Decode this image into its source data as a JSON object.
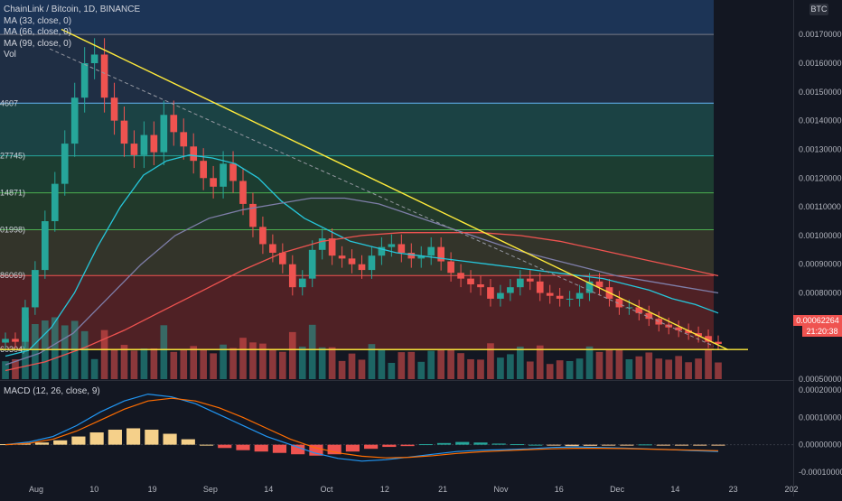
{
  "legend": {
    "symbol": "ChainLink / Bitcoin, 1D, BINANCE",
    "ma1": "MA (33, close, 0)",
    "ma2": "MA (66, close, 0)",
    "ma3": "MA (99, close, 0)",
    "vol": "Vol",
    "macd": "MACD (12, 26, close, 9)"
  },
  "currency_badge": "BTC",
  "last_price": "0.00062264",
  "countdown": "21:20:38",
  "fib_labels": [
    "4607",
    "27745)",
    "14871)",
    "01998)",
    "86069)",
    "60304)"
  ],
  "colors": {
    "background": "#131722",
    "up": "#26a69a",
    "down": "#ef5350",
    "ma33": "#26c6da",
    "ma66": "#7e7ea8",
    "ma99": "#ef5350",
    "trendline": "#ffeb3b"
  },
  "chart_data": [
    {
      "type": "candlestick",
      "title": "ChainLink / Bitcoin, 1D, BINANCE",
      "x_ticks": [
        "Aug",
        "10",
        "19",
        "Sep",
        "14",
        "Oct",
        "12",
        "21",
        "Nov",
        "16",
        "Dec",
        "14",
        "23",
        "202"
      ],
      "y_ticks": [
        "0.00170000",
        "0.00160000",
        "0.00150000",
        "0.00140000",
        "0.00130000",
        "0.00120000",
        "0.00110000",
        "0.00100000",
        "0.00090000",
        "0.00080000",
        "0.00070000",
        "0.00050000"
      ],
      "ylim": [
        0.0005,
        0.00182
      ],
      "fib_levels": [
        0.0017,
        0.00146074,
        0.00127745,
        0.00114871,
        0.00101998,
        0.00086069,
        0.00060304
      ],
      "series": [
        {
          "name": "Price",
          "values": [
            0.00064,
            0.00063,
            0.00075,
            0.00088,
            0.00105,
            0.00118,
            0.00132,
            0.00148,
            0.0016,
            0.00163,
            0.00148,
            0.0014,
            0.00132,
            0.00128,
            0.00135,
            0.00129,
            0.00142,
            0.00136,
            0.00131,
            0.00126,
            0.0012,
            0.00117,
            0.00125,
            0.00119,
            0.00111,
            0.00103,
            0.00097,
            0.00094,
            0.0009,
            0.00082,
            0.00085,
            0.00095,
            0.00099,
            0.00093,
            0.00092,
            0.0009,
            0.00088,
            0.00093,
            0.00096,
            0.00097,
            0.00094,
            0.00092,
            0.00093,
            0.00096,
            0.00091,
            0.00087,
            0.00085,
            0.00083,
            0.00082,
            0.00078,
            0.0008,
            0.00082,
            0.00085,
            0.00084,
            0.0008,
            0.00079,
            0.00078,
            0.00078,
            0.0008,
            0.00084,
            0.00082,
            0.00078,
            0.00075,
            0.00075,
            0.00073,
            0.00071,
            0.00069,
            0.00068,
            0.00067,
            0.00066,
            0.00065,
            0.00063,
            0.00062264
          ]
        },
        {
          "name": "MA (33, close, 0)",
          "values": [
            0.00058,
            0.0006,
            0.00068,
            0.0008,
            0.00096,
            0.0011,
            0.00121,
            0.00126,
            0.00128,
            0.00127,
            0.00125,
            0.0012,
            0.00112,
            0.00106,
            0.00102,
            0.00098,
            0.00096,
            0.00094,
            0.00093,
            0.00092,
            0.00091,
            0.0009,
            0.00089,
            0.00088,
            0.00087,
            0.00086,
            0.00085,
            0.00083,
            0.00081,
            0.00078,
            0.00076,
            0.00073
          ]
        },
        {
          "name": "MA (66, close, 0)",
          "values": [
            0.00055,
            0.00059,
            0.00066,
            0.00078,
            0.0009,
            0.001,
            0.00106,
            0.00109,
            0.00111,
            0.00113,
            0.00113,
            0.00111,
            0.00107,
            0.00103,
            0.00099,
            0.00095,
            0.00092,
            0.00089,
            0.00086,
            0.00084,
            0.00082,
            0.0008
          ]
        },
        {
          "name": "MA (99, close, 0)",
          "values": [
            0.00053,
            0.00056,
            0.00061,
            0.00067,
            0.00074,
            0.00081,
            0.00088,
            0.00094,
            0.00098,
            0.001,
            0.00101,
            0.00101,
            0.00101,
            0.001,
            0.00098,
            0.00095,
            0.00092,
            0.00089,
            0.00086
          ]
        }
      ]
    },
    {
      "type": "bar",
      "title": "MACD (12, 26, close, 9)",
      "y_ticks": [
        "0.00020000",
        "0.00010000",
        "0.00000000",
        "-0.00010000"
      ],
      "ylim": [
        -0.00013,
        0.00023
      ],
      "histogram": [
        2e-06,
        4e-06,
        8e-06,
        1.6e-05,
        3e-05,
        4.5e-05,
        5.5e-05,
        6e-05,
        5.5e-05,
        4e-05,
        2e-05,
        0.0,
        -1.2e-05,
        -2e-05,
        -2.5e-05,
        -3e-05,
        -3.5e-05,
        -4e-05,
        -3.5e-05,
        -2.5e-05,
        -1.5e-05,
        -8e-06,
        -5e-06,
        2e-06,
        6e-06,
        1e-05,
        8e-06,
        4e-06,
        2e-06,
        0.0,
        -3e-06,
        -5e-06,
        -4e-06,
        -3e-06,
        -1e-06,
        1e-06,
        -2e-06,
        -3e-06,
        -2e-06,
        -3e-06
      ],
      "macd": [
        0.0,
        1e-05,
        3e-05,
        7e-05,
        0.00012,
        0.00016,
        0.000185,
        0.000175,
        0.00015,
        0.00011,
        7e-05,
        3e-05,
        0.0,
        -3e-05,
        -5e-05,
        -6e-05,
        -5.5e-05,
        -4.5e-05,
        -3.5e-05,
        -2.5e-05,
        -2e-05,
        -1.8e-05,
        -1.5e-05,
        -1e-05,
        -8e-06,
        -1e-05,
        -1.2e-05,
        -1.5e-05,
        -1.8e-05,
        -2.2e-05,
        -2.5e-05
      ],
      "signal": [
        0.0,
        5e-06,
        2e-05,
        5e-05,
        9e-05,
        0.00013,
        0.00016,
        0.00017,
        0.00016,
        0.000135,
        0.0001,
        6e-05,
        2e-05,
        -1e-05,
        -3e-05,
        -4.2e-05,
        -4.8e-05,
        -4.6e-05,
        -4e-05,
        -3.2e-05,
        -2.6e-05,
        -2.2e-05,
        -1.8e-05,
        -1.5e-05,
        -1.3e-05,
        -1.3e-05,
        -1.4e-05,
        -1.6e-05,
        -1.8e-05,
        -2e-05,
        -2.2e-05
      ]
    }
  ]
}
